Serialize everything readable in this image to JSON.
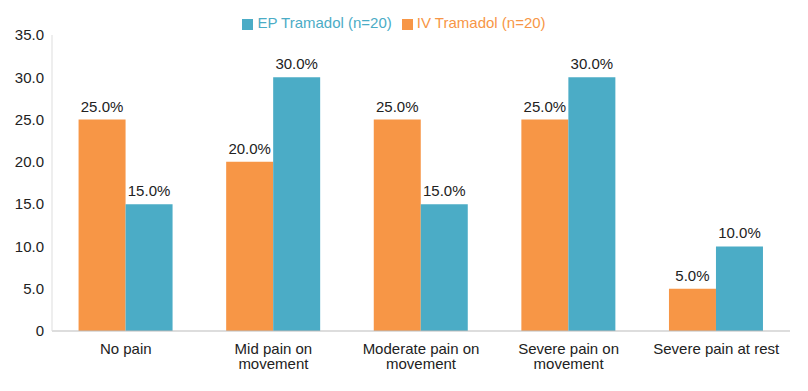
{
  "chart_data": {
    "type": "bar",
    "categories": [
      "No pain",
      "Mid pain on movement",
      "Moderate pain on movement",
      "Severe pain on movement",
      "Severe pain at rest"
    ],
    "series": [
      {
        "name": "IV Tramadol (n=20)",
        "color": "#f79646",
        "values": [
          25,
          20,
          25,
          25,
          5
        ],
        "value_labels": [
          "25.0%",
          "20.0%",
          "25.0%",
          "25.0%",
          "5.0%"
        ]
      },
      {
        "name": "EP Tramadol (n=20)",
        "color": "#4bacc6",
        "values": [
          15,
          30,
          15,
          30,
          10
        ],
        "value_labels": [
          "15.0%",
          "30.0%",
          "15.0%",
          "30.0%",
          "10.0%"
        ]
      }
    ],
    "ylim": [
      0,
      35
    ],
    "yticks": [
      {
        "value": 0,
        "label": "0"
      },
      {
        "value": 5,
        "label": "5.0"
      },
      {
        "value": 10,
        "label": "10.0"
      },
      {
        "value": 15,
        "label": "15.0"
      },
      {
        "value": 20,
        "label": "20.0"
      },
      {
        "value": 25,
        "label": "25.0"
      },
      {
        "value": 30,
        "label": "30.0"
      },
      {
        "value": 35,
        "label": "35.0"
      }
    ],
    "grid": false,
    "legend": "top",
    "data_labels": true
  }
}
